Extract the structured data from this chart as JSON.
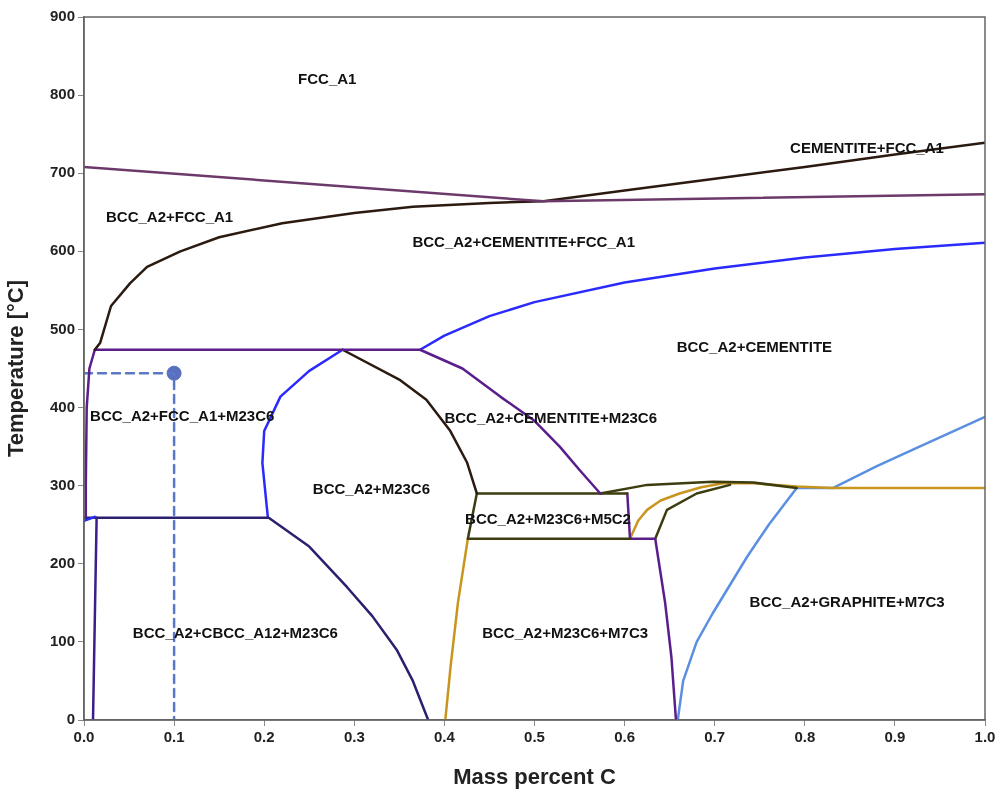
{
  "chart_data": {
    "type": "line",
    "xlabel": "Mass percent C",
    "ylabel": "Temperature [°C]",
    "xlim": [
      0,
      1
    ],
    "ylim": [
      0,
      900
    ],
    "xticks": [
      {
        "value": 0,
        "label": "0.0"
      },
      {
        "value": 0.1,
        "label": "0.1"
      },
      {
        "value": 0.2,
        "label": "0.2"
      },
      {
        "value": 0.3,
        "label": "0.3"
      },
      {
        "value": 0.4,
        "label": "0.4"
      },
      {
        "value": 0.5,
        "label": "0.5"
      },
      {
        "value": 0.6,
        "label": "0.6"
      },
      {
        "value": 0.7,
        "label": "0.7"
      },
      {
        "value": 0.8,
        "label": "0.8"
      },
      {
        "value": 0.9,
        "label": "0.9"
      },
      {
        "value": 1,
        "label": "1.0"
      }
    ],
    "yticks": [
      0,
      100,
      200,
      300,
      400,
      500,
      600,
      700,
      800,
      900
    ],
    "grid": false,
    "legend": false,
    "marker": "none",
    "line_style": "solid",
    "series": [
      {
        "color": "#2a2aff",
        "x": [
          0,
          0.012
        ],
        "values": [
          255,
          260
        ]
      },
      {
        "color": "#6b3a6b",
        "x": [
          0,
          0.51,
          1.0
        ],
        "values": [
          708,
          664,
          673
        ]
      },
      {
        "color": "#2a1a10",
        "x": [
          0.012,
          0.018,
          0.03,
          0.051,
          0.07,
          0.107,
          0.15,
          0.22,
          0.3,
          0.365,
          0.45,
          0.51,
          0.6,
          0.7,
          0.8,
          0.9,
          1.0
        ],
        "values": [
          474,
          483,
          530,
          559,
          580,
          600,
          618,
          636,
          649,
          657,
          662,
          664,
          678,
          693,
          708,
          724,
          739
        ]
      },
      {
        "color": "#5a1e8c",
        "x": [
          0.002,
          0.002,
          0.003,
          0.006,
          0.012,
          0.373,
          0.42,
          0.462,
          0.5,
          0.528,
          0.55,
          0.573
        ],
        "values": [
          260,
          300,
          400,
          450,
          474,
          474,
          450,
          414,
          383,
          350,
          320,
          290
        ]
      },
      {
        "color": "#3a1f8a",
        "x": [
          0.014,
          0.01
        ],
        "values": [
          259,
          0
        ]
      },
      {
        "color": "#2a2070",
        "x": [
          0,
          0.205,
          0.25,
          0.292,
          0.32,
          0.347,
          0.365,
          0.382
        ],
        "values": [
          259,
          259,
          222,
          170,
          133,
          90,
          50,
          0
        ]
      },
      {
        "color": "#2a2aff",
        "x": [
          0.287,
          0.25,
          0.218,
          0.2,
          0.198,
          0.204
        ],
        "values": [
          474,
          447,
          414,
          370,
          329,
          260
        ]
      },
      {
        "color": "#2a2aff",
        "x": [
          0.373,
          0.4,
          0.45,
          0.5,
          0.6,
          0.7,
          0.8,
          0.9,
          1.0
        ],
        "values": [
          474,
          492,
          517,
          535,
          560,
          578,
          592,
          603,
          611
        ]
      },
      {
        "color": "#2a1a10",
        "x": [
          0.287,
          0.351,
          0.38,
          0.406,
          0.425,
          0.436
        ],
        "values": [
          474,
          435,
          410,
          371,
          330,
          290
        ]
      },
      {
        "color": "#3d3d10",
        "x": [
          0.603,
          0.436,
          0.426,
          0.606
        ],
        "values": [
          290,
          290,
          232,
          232
        ]
      },
      {
        "color": "#5a1e8c",
        "x": [
          0.603,
          0.606,
          0.634,
          0.645,
          0.652,
          0.657
        ],
        "values": [
          290,
          232,
          232,
          150,
          80,
          0
        ]
      },
      {
        "color": "#c8961e",
        "x": [
          0.426,
          0.415,
          0.407,
          0.401
        ],
        "values": [
          232,
          150,
          70,
          0
        ]
      },
      {
        "color": "#3d3d10",
        "x": [
          0.573,
          0.625,
          0.698,
          0.743,
          0.791
        ],
        "values": [
          290,
          301,
          305,
          304,
          297
        ]
      },
      {
        "color": "#3d3d10",
        "x": [
          0.634,
          0.647,
          0.68,
          0.717
        ],
        "values": [
          232,
          269,
          290,
          301
        ]
      },
      {
        "color": "#c8961e",
        "x": [
          0.606,
          0.615,
          0.625,
          0.64,
          0.661,
          0.685,
          0.709,
          0.743,
          0.791,
          0.831,
          1.0
        ],
        "values": [
          232,
          255,
          269,
          281,
          290,
          298,
          303,
          303,
          299,
          297,
          297
        ]
      },
      {
        "color": "#5b8fe0",
        "x": [
          0.659,
          0.665,
          0.68,
          0.698,
          0.736,
          0.76,
          0.791,
          0.831,
          0.88,
          0.92,
          1.0
        ],
        "values": [
          0,
          50,
          100,
          137,
          209,
          250,
          297,
          297,
          325,
          346,
          388
        ]
      },
      {
        "color": "#5b78c8",
        "line_style": "dashed",
        "x": [
          0,
          0.1,
          0.1
        ],
        "values": [
          444,
          444,
          0
        ]
      },
      {
        "type": "scatter",
        "marker": "circle",
        "color": "#5b6fbf",
        "x": [
          0.1
        ],
        "values": [
          444
        ]
      }
    ],
    "annotations": [
      "FCC_A1",
      "CEMENTITE+FCC_A1",
      "BCC_A2+FCC_A1",
      "BCC_A2+CEMENTITE+FCC_A1",
      "BCC_A2+CEMENTITE",
      "BCC_A2+FCC_A1+M23C6",
      "BCC_A2+CEMENTITE+M23C6",
      "BCC_A2+M23C6",
      "BCC_A2+M23C6+M5C2",
      "BCC_A2+CBCC_A12+M23C6",
      "BCC_A2+M23C6+M7C3",
      "BCC_A2+GRAPHITE+M7C3"
    ]
  }
}
